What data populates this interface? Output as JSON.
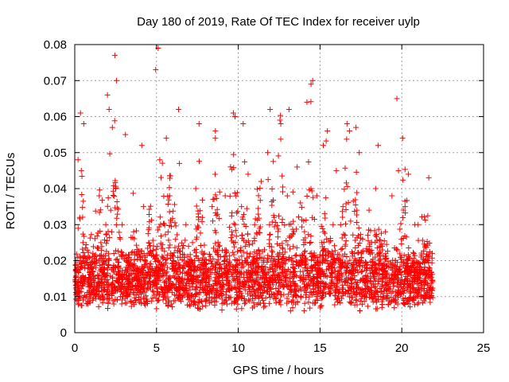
{
  "chart_data": {
    "type": "scatter",
    "title": "Day 180 of 2019, Rate Of TEC Index for receiver uylp",
    "xlabel": "GPS time / hours",
    "ylabel": "ROTI / TECUs",
    "xlim": [
      0,
      25
    ],
    "ylim": [
      0,
      0.08
    ],
    "x_ticks": [
      0,
      5,
      10,
      15,
      20,
      25
    ],
    "y_ticks": [
      0,
      0.01,
      0.02,
      0.03,
      0.04,
      0.05,
      0.06,
      0.07,
      0.08
    ],
    "x_tick_labels": [
      "0",
      "5",
      "10",
      "15",
      "20",
      "25"
    ],
    "y_tick_labels": [
      "0",
      "0.01",
      "0.02",
      "0.03",
      "0.04",
      "0.05",
      "0.06",
      "0.07",
      "0.08"
    ],
    "grid": true,
    "marker": "plus",
    "color": "#ff0000",
    "series": [
      {
        "x": [
          0.1,
          0.2,
          0.3,
          0.4,
          0.5,
          0.6,
          0.7,
          0.8,
          0.9,
          1.0,
          1.1,
          1.2,
          1.3,
          1.4,
          1.5,
          1.6,
          1.7,
          1.8,
          1.9,
          2.0,
          2.1,
          2.2,
          2.3,
          2.4,
          2.5,
          2.6,
          2.7,
          2.8,
          2.9,
          3.0,
          3.2,
          3.4,
          3.6,
          3.8,
          4.0,
          4.2,
          4.4,
          4.6,
          4.8,
          5.0,
          5.2,
          5.4,
          5.6,
          5.8,
          6.0,
          6.2,
          6.4,
          6.6,
          6.8,
          7.0,
          7.2,
          7.4,
          7.6,
          7.8,
          8.0,
          8.2,
          8.4,
          8.6,
          8.8,
          9.0,
          9.2,
          9.4,
          9.6,
          9.8,
          10.0,
          10.2,
          10.4,
          10.6,
          10.8,
          11.0,
          11.2,
          11.4,
          11.6,
          11.8,
          12.0,
          12.2,
          12.4,
          12.6,
          12.8,
          13.0,
          13.2,
          13.4,
          13.6,
          13.8,
          14.0,
          14.2,
          14.4,
          14.6,
          14.8,
          15.0,
          15.2,
          15.4,
          15.6,
          15.8,
          16.0,
          16.2,
          16.4,
          16.6,
          16.8,
          17.0,
          17.2,
          17.4,
          17.6,
          17.8,
          18.0,
          18.2,
          18.4,
          18.6,
          18.8,
          19.0,
          19.2,
          19.4,
          19.6,
          19.8,
          20.0,
          20.2,
          20.4,
          20.6,
          20.8,
          21.0,
          21.2,
          21.4,
          21.6,
          21.8,
          2.45,
          5.1,
          4.95,
          14.45,
          14.55,
          19.7,
          20.05,
          2.0,
          2.55,
          0.35,
          0.55,
          8.6,
          9.7,
          11.95,
          13.1,
          16.65,
          17.2,
          21.65,
          3.1,
          4.1,
          6.35,
          7.6,
          10.3,
          12.55,
          15.45,
          18.55,
          21.0
        ],
        "y": [
          0.012,
          0.048,
          0.032,
          0.045,
          0.02,
          0.015,
          0.01,
          0.008,
          0.013,
          0.011,
          0.009,
          0.014,
          0.012,
          0.016,
          0.038,
          0.025,
          0.01,
          0.012,
          0.03,
          0.018,
          0.062,
          0.034,
          0.057,
          0.022,
          0.04,
          0.012,
          0.015,
          0.01,
          0.03,
          0.011,
          0.02,
          0.014,
          0.028,
          0.018,
          0.012,
          0.035,
          0.016,
          0.022,
          0.014,
          0.015,
          0.048,
          0.01,
          0.054,
          0.038,
          0.02,
          0.012,
          0.047,
          0.015,
          0.03,
          0.013,
          0.025,
          0.04,
          0.018,
          0.032,
          0.011,
          0.015,
          0.035,
          0.054,
          0.024,
          0.016,
          0.038,
          0.012,
          0.028,
          0.06,
          0.014,
          0.035,
          0.02,
          0.044,
          0.016,
          0.03,
          0.012,
          0.042,
          0.023,
          0.05,
          0.015,
          0.032,
          0.011,
          0.058,
          0.02,
          0.038,
          0.013,
          0.028,
          0.046,
          0.017,
          0.031,
          0.064,
          0.022,
          0.012,
          0.038,
          0.016,
          0.052,
          0.026,
          0.013,
          0.03,
          0.045,
          0.012,
          0.035,
          0.018,
          0.056,
          0.022,
          0.014,
          0.05,
          0.026,
          0.012,
          0.034,
          0.018,
          0.04,
          0.015,
          0.024,
          0.028,
          0.012,
          0.038,
          0.02,
          0.045,
          0.014,
          0.035,
          0.044,
          0.018,
          0.03,
          0.012,
          0.01,
          0.015,
          0.02,
          0.011,
          0.077,
          0.079,
          0.073,
          0.069,
          0.07,
          0.065,
          0.054,
          0.066,
          0.07,
          0.061,
          0.058,
          0.056,
          0.061,
          0.062,
          0.062,
          0.058,
          0.057,
          0.043,
          0.055,
          0.052,
          0.062,
          0.058,
          0.058,
          0.059,
          0.056,
          0.052,
          0.03
        ]
      }
    ]
  }
}
